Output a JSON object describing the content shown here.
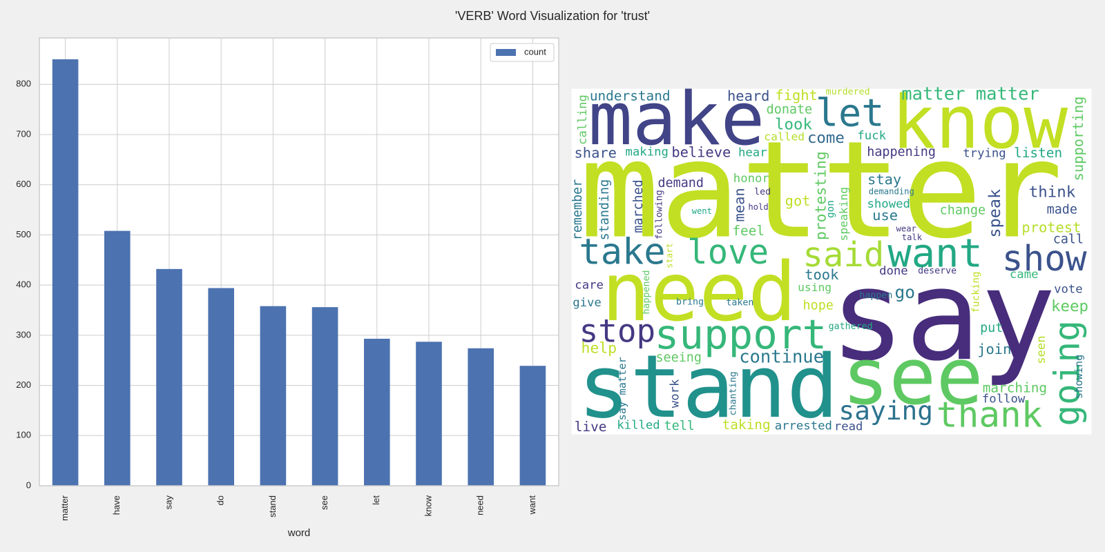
{
  "title": "'VERB' Word Visualization for 'trust'",
  "chart_data": [
    {
      "type": "bar",
      "categories": [
        "matter",
        "have",
        "say",
        "do",
        "stand",
        "see",
        "let",
        "know",
        "need",
        "want"
      ],
      "series": [
        {
          "name": "count",
          "color": "#4c72b0",
          "values": [
            850,
            508,
            432,
            394,
            358,
            356,
            293,
            287,
            274,
            239
          ]
        }
      ],
      "xlabel": "word",
      "ylim": [
        0,
        892.5
      ],
      "yticks": [
        0,
        100,
        200,
        300,
        400,
        500,
        600,
        700,
        800
      ],
      "grid": true,
      "legend": "upper right"
    },
    {
      "type": "wordcloud",
      "background": "#ffffff",
      "words": [
        "matter",
        "say",
        "stand",
        "see",
        "need",
        "make",
        "know",
        "support",
        "take",
        "love",
        "said",
        "want",
        "show",
        "stop",
        "let",
        "going",
        "thank",
        "saying",
        "continue",
        "matter matter",
        "understand",
        "heard",
        "fight",
        "murdered",
        "donate",
        "look",
        "come",
        "called",
        "fuck",
        "share",
        "making",
        "believe",
        "hear",
        "happening",
        "trying",
        "listen",
        "supporting",
        "calling",
        "remember",
        "standing",
        "marched",
        "demand",
        "honor",
        "led",
        "hold",
        "went",
        "following",
        "start",
        "mean",
        "feel",
        "got",
        "protesting",
        "gon",
        "speaking",
        "stay",
        "demanding",
        "showed",
        "use",
        "speak",
        "change",
        "think",
        "made",
        "protest",
        "call",
        "wear",
        "talk",
        "care",
        "give",
        "happened",
        "bring",
        "taken",
        "took",
        "using",
        "done",
        "deserve",
        "came",
        "go",
        "happen",
        "hope",
        "fucking",
        "vote",
        "keep",
        "put",
        "gathered",
        "join",
        "seen",
        "showing",
        "marching",
        "follow",
        "help",
        "seeing",
        "say matter",
        "work",
        "chanting",
        "live",
        "killed",
        "tell",
        "taking",
        "arrested",
        "read"
      ],
      "colors": [
        "#c2df23",
        "#472d7b",
        "#21918c",
        "#5ec962",
        "#c2df23",
        "#414487",
        "#c2df23",
        "#35b779",
        "#2a788e",
        "#35b779",
        "#a5db36",
        "#22a884",
        "#3b528b",
        "#443983",
        "#2a788e",
        "#35b779",
        "#5ec962",
        "#2c728e",
        "#2a788e",
        "#35b779",
        "#2a788e",
        "#3b528b",
        "#bddf26",
        "#b5de2b",
        "#5ec962",
        "#35b779",
        "#31688e",
        "#b5de2b",
        "#22a884",
        "#3b528b",
        "#22a884",
        "#443983",
        "#22a884",
        "#443983",
        "#3b528b",
        "#22a884",
        "#5ec962",
        "#5ec962",
        "#2a788e",
        "#2a788e",
        "#3b528b",
        "#443983",
        "#5ec962",
        "#443983",
        "#443983",
        "#22a884",
        "#443983",
        "#bddf26",
        "#3b528b",
        "#5ec962",
        "#bddf26",
        "#5ec962",
        "#22a884",
        "#5ec962",
        "#2a788e",
        "#2a788e",
        "#22a884",
        "#2a788e",
        "#3b528b",
        "#5ec962",
        "#3b528b",
        "#3b528b",
        "#b5de2b",
        "#3b528b",
        "#443983",
        "#443983",
        "#443983",
        "#2a788e",
        "#5ec962",
        "#2a788e",
        "#2a788e",
        "#2a788e",
        "#5ec962",
        "#443983",
        "#443983",
        "#35b779",
        "#2a788e",
        "#2a788e",
        "#bddf26",
        "#bddf26",
        "#3b528b",
        "#5ec962",
        "#22a884",
        "#22a884",
        "#2a788e",
        "#b5de2b",
        "#2a788e",
        "#5ec962",
        "#3b528b",
        "#bddf26",
        "#5ec962",
        "#2a788e",
        "#3b528b",
        "#2a788e",
        "#443983",
        "#22a884",
        "#35b779",
        "#bddf26",
        "#2a788e",
        "#3b528b"
      ]
    }
  ]
}
